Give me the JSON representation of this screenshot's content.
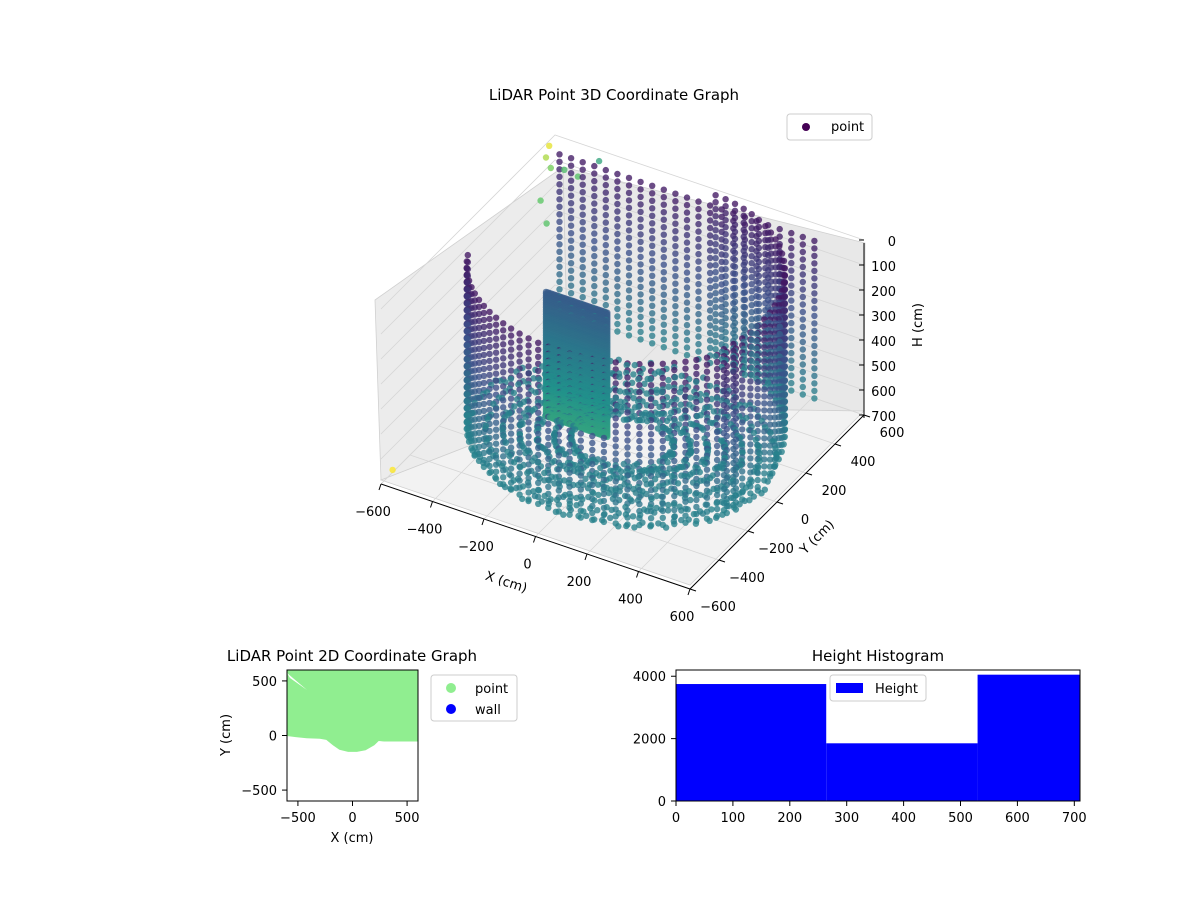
{
  "chart_data": [
    {
      "type": "scatter",
      "title": "LiDAR Point 3D Coordinate Graph",
      "xlabel": "X (cm)",
      "ylabel": "Y (cm)",
      "zlabel": "H (cm)",
      "xlim": [
        -600,
        600
      ],
      "ylim": [
        -600,
        600
      ],
      "zlim": [
        0,
        700
      ],
      "x_ticks": [
        "-600",
        "-400",
        "-200",
        "0",
        "200",
        "400",
        "600"
      ],
      "y_ticks": [
        "-600",
        "-400",
        "-200",
        "0",
        "200",
        "400",
        "600"
      ],
      "z_ticks": [
        "0",
        "100",
        "200",
        "300",
        "400",
        "500",
        "600",
        "700"
      ],
      "legend": [
        "point"
      ],
      "legend_loc": "upper right",
      "colormap": "viridis",
      "grid": true
    },
    {
      "type": "scatter",
      "title": "LiDAR Point 2D Coordinate Graph",
      "xlabel": "X (cm)",
      "ylabel": "Y (cm)",
      "xlim": [
        -600,
        600
      ],
      "ylim": [
        -600,
        600
      ],
      "x_ticks": [
        "-500",
        "0",
        "500"
      ],
      "y_ticks": [
        "-500",
        "0",
        "500"
      ],
      "series": [
        {
          "name": "point",
          "color": "#90ee90"
        },
        {
          "name": "wall",
          "color": "#0000ff"
        }
      ],
      "region_boundary": [
        {
          "x": -600,
          "y": -5
        },
        {
          "x": -520,
          "y": -15
        },
        {
          "x": -420,
          "y": -25
        },
        {
          "x": -300,
          "y": -30
        },
        {
          "x": -240,
          "y": -40
        },
        {
          "x": -180,
          "y": -90
        },
        {
          "x": -120,
          "y": -130
        },
        {
          "x": -40,
          "y": -150
        },
        {
          "x": 40,
          "y": -150
        },
        {
          "x": 120,
          "y": -135
        },
        {
          "x": 200,
          "y": -90
        },
        {
          "x": 240,
          "y": -50
        },
        {
          "x": 290,
          "y": -55
        },
        {
          "x": 450,
          "y": -55
        },
        {
          "x": 600,
          "y": -55
        }
      ]
    },
    {
      "type": "bar",
      "title": "Height Histogram",
      "xlim": [
        0,
        710
      ],
      "ylim": [
        0,
        4200
      ],
      "x_ticks": [
        "0",
        "100",
        "200",
        "300",
        "400",
        "500",
        "600",
        "700"
      ],
      "y_ticks": [
        "0",
        "2000",
        "4000"
      ],
      "series": [
        {
          "name": "Height",
          "color": "#0000ff"
        }
      ],
      "bins": [
        {
          "start": 0,
          "end": 264,
          "count": 3750
        },
        {
          "start": 264,
          "end": 530,
          "count": 1850
        },
        {
          "start": 530,
          "end": 710,
          "count": 4050
        }
      ],
      "legend_loc": "upper center"
    }
  ]
}
